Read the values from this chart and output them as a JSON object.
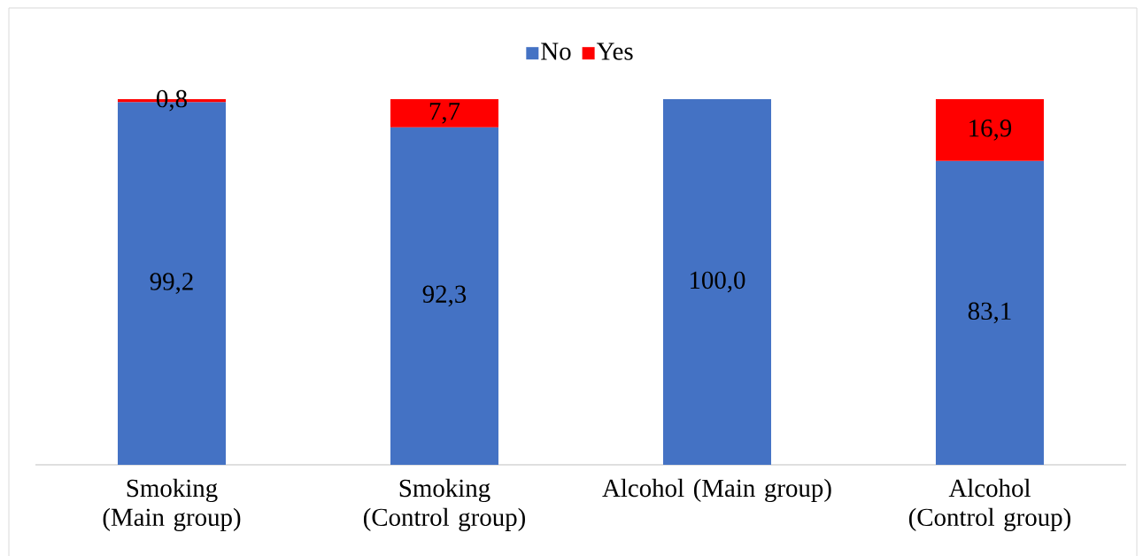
{
  "chart_data": {
    "type": "bar",
    "stacked": true,
    "categories": [
      "Smoking (Main group)",
      "Smoking (Control group)",
      "Alcohol (Main group)",
      "Alcohol (Control group)"
    ],
    "series": [
      {
        "name": "No",
        "color": "#4472c4",
        "values": [
          99.2,
          92.3,
          100.0,
          83.1
        ],
        "value_labels": [
          "99,2",
          "92,3",
          "100,0",
          "83,1"
        ]
      },
      {
        "name": "Yes",
        "color": "#ff0000",
        "values": [
          0.8,
          7.7,
          null,
          16.9
        ],
        "value_labels": [
          "0,8",
          "7,7",
          null,
          "16,9"
        ]
      }
    ],
    "ylim": [
      0,
      100
    ],
    "tick_labels": "x",
    "legend": "top"
  }
}
